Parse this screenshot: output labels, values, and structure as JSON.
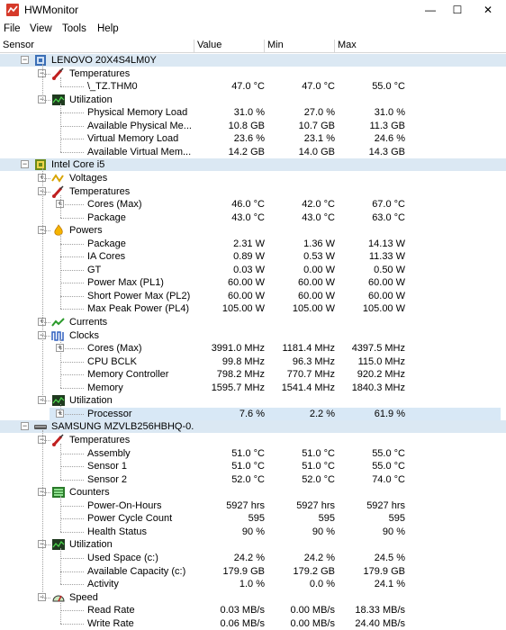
{
  "window": {
    "title": "HWMonitor",
    "minimize": "—",
    "maximize": "☐",
    "close": "✕"
  },
  "menu": [
    "File",
    "View",
    "Tools",
    "Help"
  ],
  "columns": {
    "sensor": "Sensor",
    "value": "Value",
    "min": "Min",
    "max": "Max"
  },
  "colors": {
    "device_row": "#dbe8f3",
    "app_icon": "#d63a2a"
  },
  "rows": [
    {
      "level": 0,
      "type": "device",
      "icon": "laptop-icon",
      "label": "LENOVO 20X4S4LM0Y",
      "expanded": true
    },
    {
      "level": 1,
      "type": "group",
      "icon": "thermometer-icon",
      "label": "Temperatures",
      "expanded": true
    },
    {
      "level": 2,
      "type": "sensor",
      "label": "\\_TZ.THM0",
      "value": "47.0 °C",
      "min": "47.0 °C",
      "max": "55.0 °C"
    },
    {
      "level": 1,
      "type": "group",
      "icon": "utilization-icon",
      "label": "Utilization",
      "expanded": true
    },
    {
      "level": 2,
      "type": "sensor",
      "label": "Physical Memory Load",
      "value": "31.0 %",
      "min": "27.0 %",
      "max": "31.0 %"
    },
    {
      "level": 2,
      "type": "sensor",
      "label": "Available Physical Me...",
      "value": "10.8 GB",
      "min": "10.7 GB",
      "max": "11.3 GB"
    },
    {
      "level": 2,
      "type": "sensor",
      "label": "Virtual Memory Load",
      "value": "23.6 %",
      "min": "23.1 %",
      "max": "24.6 %"
    },
    {
      "level": 2,
      "type": "sensor",
      "label": "Available Virtual Mem...",
      "value": "14.2 GB",
      "min": "14.0 GB",
      "max": "14.3 GB"
    },
    {
      "level": 0,
      "type": "device",
      "icon": "cpu-icon",
      "label": "Intel Core i5",
      "expanded": true
    },
    {
      "level": 1,
      "type": "group",
      "icon": "voltage-icon",
      "label": "Voltages",
      "expanded": false
    },
    {
      "level": 1,
      "type": "group",
      "icon": "thermometer-icon",
      "label": "Temperatures",
      "expanded": true
    },
    {
      "level": 2,
      "type": "sensor",
      "label": "Cores (Max)",
      "value": "46.0 °C",
      "min": "42.0 °C",
      "max": "67.0 °C",
      "expander": true
    },
    {
      "level": 2,
      "type": "sensor",
      "label": "Package",
      "value": "43.0 °C",
      "min": "43.0 °C",
      "max": "63.0 °C"
    },
    {
      "level": 1,
      "type": "group",
      "icon": "power-icon",
      "label": "Powers",
      "expanded": true
    },
    {
      "level": 2,
      "type": "sensor",
      "label": "Package",
      "value": "2.31 W",
      "min": "1.36 W",
      "max": "14.13 W"
    },
    {
      "level": 2,
      "type": "sensor",
      "label": "IA Cores",
      "value": "0.89 W",
      "min": "0.53 W",
      "max": "11.33 W"
    },
    {
      "level": 2,
      "type": "sensor",
      "label": "GT",
      "value": "0.03 W",
      "min": "0.00 W",
      "max": "0.50 W"
    },
    {
      "level": 2,
      "type": "sensor",
      "label": "Power Max (PL1)",
      "value": "60.00 W",
      "min": "60.00 W",
      "max": "60.00 W"
    },
    {
      "level": 2,
      "type": "sensor",
      "label": "Short Power Max (PL2)",
      "value": "60.00 W",
      "min": "60.00 W",
      "max": "60.00 W"
    },
    {
      "level": 2,
      "type": "sensor",
      "label": "Max Peak Power (PL4)",
      "value": "105.00 W",
      "min": "105.00 W",
      "max": "105.00 W"
    },
    {
      "level": 1,
      "type": "group",
      "icon": "currents-icon",
      "label": "Currents",
      "expanded": false
    },
    {
      "level": 1,
      "type": "group",
      "icon": "clocks-icon",
      "label": "Clocks",
      "expanded": true
    },
    {
      "level": 2,
      "type": "sensor",
      "label": "Cores (Max)",
      "value": "3991.0 MHz",
      "min": "1181.4 MHz",
      "max": "4397.5 MHz",
      "expander": true
    },
    {
      "level": 2,
      "type": "sensor",
      "label": "CPU BCLK",
      "value": "99.8 MHz",
      "min": "96.3 MHz",
      "max": "115.0 MHz"
    },
    {
      "level": 2,
      "type": "sensor",
      "label": "Memory Controller",
      "value": "798.2 MHz",
      "min": "770.7 MHz",
      "max": "920.2 MHz"
    },
    {
      "level": 2,
      "type": "sensor",
      "label": "Memory",
      "value": "1595.7 MHz",
      "min": "1541.4 MHz",
      "max": "1840.3 MHz"
    },
    {
      "level": 1,
      "type": "group",
      "icon": "utilization-icon",
      "label": "Utilization",
      "expanded": true
    },
    {
      "level": 2,
      "type": "sensor",
      "label": "Processor",
      "value": "7.6 %",
      "min": "2.2 %",
      "max": "61.9 %",
      "expander": true,
      "highlight": true
    },
    {
      "level": 0,
      "type": "device",
      "icon": "ssd-icon",
      "label": "SAMSUNG MZVLB256HBHQ-0...",
      "expanded": true
    },
    {
      "level": 1,
      "type": "group",
      "icon": "thermometer-icon",
      "label": "Temperatures",
      "expanded": true
    },
    {
      "level": 2,
      "type": "sensor",
      "label": "Assembly",
      "value": "51.0 °C",
      "min": "51.0 °C",
      "max": "55.0 °C"
    },
    {
      "level": 2,
      "type": "sensor",
      "label": "Sensor 1",
      "value": "51.0 °C",
      "min": "51.0 °C",
      "max": "55.0 °C"
    },
    {
      "level": 2,
      "type": "sensor",
      "label": "Sensor 2",
      "value": "52.0 °C",
      "min": "52.0 °C",
      "max": "74.0 °C"
    },
    {
      "level": 1,
      "type": "group",
      "icon": "counters-icon",
      "label": "Counters",
      "expanded": true
    },
    {
      "level": 2,
      "type": "sensor",
      "label": "Power-On-Hours",
      "value": "5927 hrs",
      "min": "5927 hrs",
      "max": "5927 hrs"
    },
    {
      "level": 2,
      "type": "sensor",
      "label": "Power Cycle Count",
      "value": "595",
      "min": "595",
      "max": "595"
    },
    {
      "level": 2,
      "type": "sensor",
      "label": "Health Status",
      "value": "90 %",
      "min": "90 %",
      "max": "90 %"
    },
    {
      "level": 1,
      "type": "group",
      "icon": "utilization-icon",
      "label": "Utilization",
      "expanded": true
    },
    {
      "level": 2,
      "type": "sensor",
      "label": "Used Space (c:)",
      "value": "24.2 %",
      "min": "24.2 %",
      "max": "24.5 %"
    },
    {
      "level": 2,
      "type": "sensor",
      "label": "Available Capacity (c:)",
      "value": "179.9 GB",
      "min": "179.2 GB",
      "max": "179.9 GB"
    },
    {
      "level": 2,
      "type": "sensor",
      "label": "Activity",
      "value": "1.0 %",
      "min": "0.0 %",
      "max": "24.1 %"
    },
    {
      "level": 1,
      "type": "group",
      "icon": "speed-icon",
      "label": "Speed",
      "expanded": true
    },
    {
      "level": 2,
      "type": "sensor",
      "label": "Read Rate",
      "value": "0.03 MB/s",
      "min": "0.00 MB/s",
      "max": "18.33 MB/s"
    },
    {
      "level": 2,
      "type": "sensor",
      "label": "Write Rate",
      "value": "0.06 MB/s",
      "min": "0.00 MB/s",
      "max": "24.40 MB/s"
    }
  ]
}
